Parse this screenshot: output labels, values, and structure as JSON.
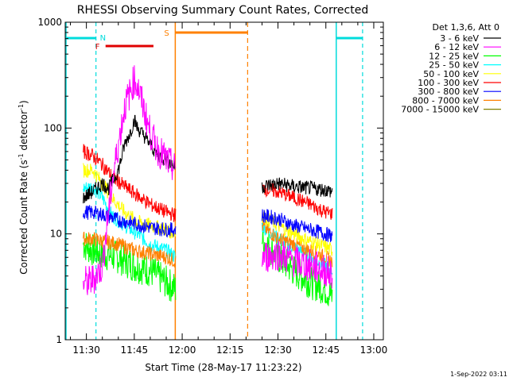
{
  "chart_data": {
    "type": "line",
    "title": "RHESSI Observing Summary Count Rates, Corrected",
    "xlabel": "Start Time (28-May-17 11:23:22)",
    "ylabel": "Corrected Count Rate (s⁻¹ detector⁻¹)",
    "ylabel_parts": {
      "main": "Corrected Count Rate (s",
      "sup1": "-1",
      "mid": " detector",
      "sup2": "-1",
      "end": ")"
    },
    "y_scale": "log",
    "ylim": [
      1,
      1000
    ],
    "xlim": [
      "11:23:22",
      "13:03:00"
    ],
    "x_tick_labels": [
      "11:30",
      "11:45",
      "12:00",
      "12:15",
      "12:30",
      "12:45",
      "13:00"
    ],
    "y_tick_labels": [
      {
        "v": 1,
        "label": "1"
      },
      {
        "v": 10,
        "label": "10"
      },
      {
        "v": 100,
        "label": "100"
      },
      {
        "v": 1000,
        "label": "1000"
      }
    ],
    "legend_header": "Det 1,3,6, Att 0",
    "legend_position": "top-right",
    "footer": "1-Sep-2022 03:11",
    "colors": {
      "night": "#00dcdc",
      "flare": "#e00000",
      "saa": "#ff8000"
    },
    "series": [
      {
        "name": "3 - 6 keV",
        "color": "#000000",
        "seg1": [
          [
            "11:29",
            22
          ],
          [
            "11:32",
            25
          ],
          [
            "11:35",
            30
          ],
          [
            "11:37",
            27
          ],
          [
            "11:40",
            40
          ],
          [
            "11:42",
            70
          ],
          [
            "11:44",
            95
          ],
          [
            "11:45",
            120
          ],
          [
            "11:46",
            100
          ],
          [
            "11:48",
            85
          ],
          [
            "11:50",
            70
          ],
          [
            "11:52",
            57
          ],
          [
            "11:55",
            50
          ],
          [
            "11:57",
            45
          ],
          [
            "11:58",
            43
          ]
        ],
        "seg2": [
          [
            "12:25",
            28
          ],
          [
            "12:30",
            30
          ],
          [
            "12:35",
            28
          ],
          [
            "12:40",
            27
          ],
          [
            "12:45",
            26
          ],
          [
            "12:47",
            25
          ]
        ]
      },
      {
        "name": "6 - 12 keV",
        "color": "#ff00ff",
        "seg1": [
          [
            "11:29",
            3.5
          ],
          [
            "11:31",
            3.5
          ],
          [
            "11:33",
            4
          ],
          [
            "11:35",
            5
          ],
          [
            "11:38",
            30
          ],
          [
            "11:40",
            70
          ],
          [
            "11:42",
            160
          ],
          [
            "11:44",
            230
          ],
          [
            "11:45",
            290
          ],
          [
            "11:46",
            250
          ],
          [
            "11:48",
            150
          ],
          [
            "11:50",
            90
          ],
          [
            "11:52",
            65
          ],
          [
            "11:55",
            50
          ],
          [
            "11:58",
            40
          ]
        ],
        "seg2": [
          [
            "12:25",
            6
          ],
          [
            "12:30",
            6.5
          ],
          [
            "12:35",
            5.5
          ],
          [
            "12:40",
            5
          ],
          [
            "12:45",
            4.5
          ],
          [
            "12:47",
            4
          ]
        ]
      },
      {
        "name": "12 - 25 keV",
        "color": "#00ff00",
        "seg1": [
          [
            "11:29",
            8
          ],
          [
            "11:32",
            7
          ],
          [
            "11:35",
            6.5
          ],
          [
            "11:40",
            6
          ],
          [
            "11:45",
            5
          ],
          [
            "11:50",
            4.5
          ],
          [
            "11:55",
            3.5
          ],
          [
            "11:58",
            3
          ]
        ],
        "seg2": [
          [
            "12:25",
            9
          ],
          [
            "12:30",
            6
          ],
          [
            "12:35",
            4.5
          ],
          [
            "12:40",
            3.5
          ],
          [
            "12:45",
            3
          ],
          [
            "12:47",
            2.5
          ]
        ]
      },
      {
        "name": "25 - 50 keV",
        "color": "#00ffff",
        "seg1": [
          [
            "11:29",
            27
          ],
          [
            "11:32",
            28
          ],
          [
            "11:35",
            22
          ],
          [
            "11:38",
            15
          ],
          [
            "11:42",
            12
          ],
          [
            "11:46",
            10
          ],
          [
            "11:50",
            8
          ],
          [
            "11:55",
            7
          ],
          [
            "11:58",
            6
          ]
        ],
        "seg2": [
          [
            "12:25",
            12
          ],
          [
            "12:30",
            9
          ],
          [
            "12:35",
            7.5
          ],
          [
            "12:40",
            6
          ],
          [
            "12:45",
            5
          ],
          [
            "12:47",
            4.5
          ]
        ]
      },
      {
        "name": "50 - 100 keV",
        "color": "#ffff00",
        "seg1": [
          [
            "11:29",
            40
          ],
          [
            "11:32",
            40
          ],
          [
            "11:35",
            30
          ],
          [
            "11:38",
            22
          ],
          [
            "11:42",
            16
          ],
          [
            "11:46",
            13
          ],
          [
            "11:50",
            12
          ],
          [
            "11:55",
            11
          ],
          [
            "11:58",
            10
          ]
        ],
        "seg2": [
          [
            "12:25",
            15
          ],
          [
            "12:30",
            12
          ],
          [
            "12:35",
            10
          ],
          [
            "12:40",
            8.5
          ],
          [
            "12:45",
            7.5
          ],
          [
            "12:47",
            7
          ]
        ]
      },
      {
        "name": "100 - 300 keV",
        "color": "#ff0000",
        "seg1": [
          [
            "11:29",
            60
          ],
          [
            "11:32",
            55
          ],
          [
            "11:35",
            45
          ],
          [
            "11:38",
            35
          ],
          [
            "11:42",
            28
          ],
          [
            "11:46",
            23
          ],
          [
            "11:50",
            19
          ],
          [
            "11:55",
            16
          ],
          [
            "11:58",
            15
          ]
        ],
        "seg2": [
          [
            "12:25",
            27
          ],
          [
            "12:30",
            25
          ],
          [
            "12:35",
            22
          ],
          [
            "12:40",
            19
          ],
          [
            "12:45",
            16
          ],
          [
            "12:47",
            15.5
          ]
        ]
      },
      {
        "name": "300 - 800 keV",
        "color": "#0000ff",
        "seg1": [
          [
            "11:29",
            16
          ],
          [
            "11:32",
            16
          ],
          [
            "11:36",
            15
          ],
          [
            "11:40",
            13.5
          ],
          [
            "11:45",
            12.5
          ],
          [
            "11:50",
            11.5
          ],
          [
            "11:55",
            11
          ],
          [
            "11:58",
            11
          ]
        ],
        "seg2": [
          [
            "12:25",
            15
          ],
          [
            "12:30",
            14
          ],
          [
            "12:35",
            12
          ],
          [
            "12:40",
            11
          ],
          [
            "12:45",
            10
          ],
          [
            "12:47",
            9.5
          ]
        ]
      },
      {
        "name": "800 - 7000 keV",
        "color": "#ff8000",
        "seg1": [
          [
            "11:29",
            9
          ],
          [
            "11:32",
            9
          ],
          [
            "11:36",
            8.5
          ],
          [
            "11:40",
            8
          ],
          [
            "11:45",
            7
          ],
          [
            "11:50",
            6.5
          ],
          [
            "11:55",
            6
          ],
          [
            "11:58",
            5.5
          ]
        ],
        "seg2": [
          [
            "12:25",
            12
          ],
          [
            "12:30",
            9
          ],
          [
            "12:35",
            8
          ],
          [
            "12:40",
            7
          ],
          [
            "12:45",
            6
          ],
          [
            "12:47",
            5.5
          ]
        ]
      },
      {
        "name": "7000 - 15000 keV",
        "color": "#808000",
        "seg1": [],
        "seg2": []
      }
    ],
    "night_intervals": [
      [
        "11:23:22",
        "11:33"
      ],
      [
        "12:48",
        "12:56:30"
      ]
    ],
    "flare_bar": {
      "label": "F",
      "start": "11:36",
      "end": "11:51"
    },
    "saa_bar": {
      "label": "S",
      "start": "11:57:50",
      "end": "12:20:30"
    },
    "n_marker": {
      "label": "N",
      "time": "11:33"
    }
  }
}
